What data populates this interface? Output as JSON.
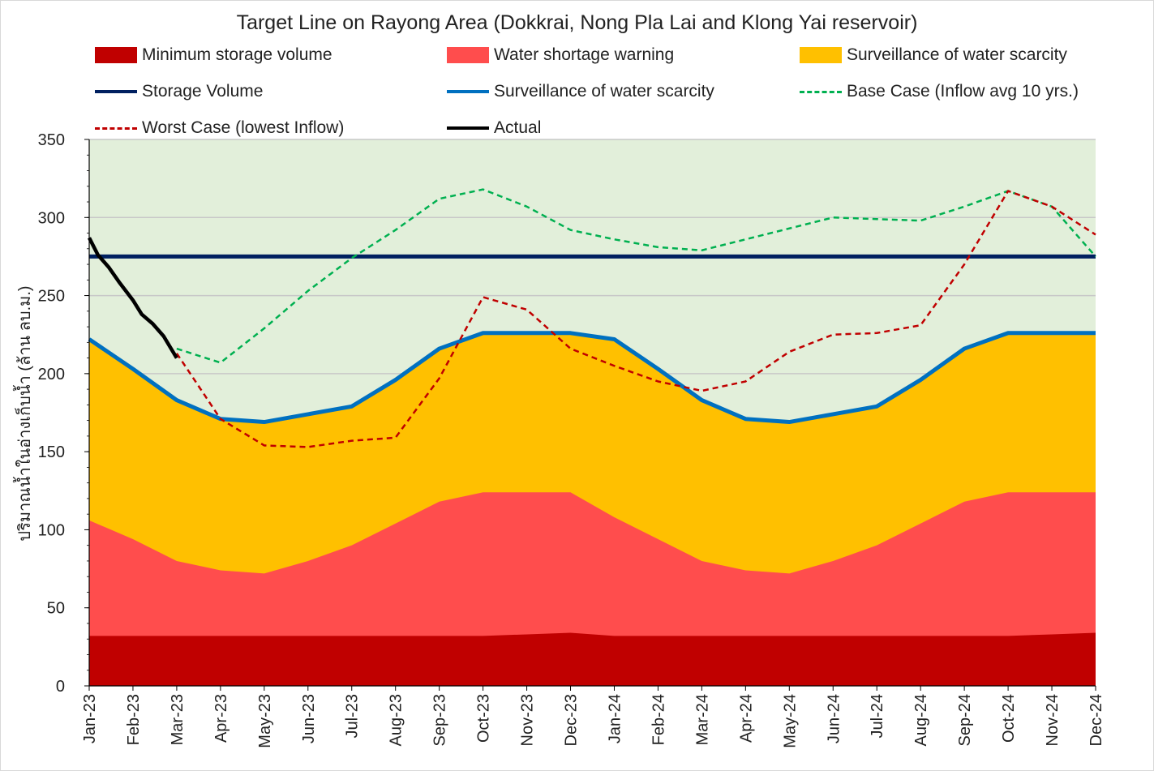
{
  "chart_data": {
    "type": "area",
    "title": "Target Line on Rayong Area (Dokkrai, Nong Pla Lai and Klong Yai reservoir)",
    "ylabel": "ปริมาณน้ำในอ่างเก็บน้ำ (ล้าน ลบ.ม.)",
    "xlabel": "",
    "ylim": [
      0,
      350
    ],
    "yticks": [
      0,
      50,
      100,
      150,
      200,
      250,
      300,
      350
    ],
    "grid": true,
    "legend_position": "top",
    "categories": [
      "Jan-23",
      "Feb-23",
      "Mar-23",
      "Apr-23",
      "May-23",
      "Jun-23",
      "Jul-23",
      "Aug-23",
      "Sep-23",
      "Oct-23",
      "Nov-23",
      "Dec-23",
      "Jan-24",
      "Feb-24",
      "Mar-24",
      "Apr-24",
      "May-24",
      "Jun-24",
      "Jul-24",
      "Aug-24",
      "Sep-24",
      "Oct-24",
      "Nov-24",
      "Dec-24"
    ],
    "background_color": "#e2efda",
    "series": [
      {
        "name": "Minimum storage volume",
        "kind": "area",
        "color": "#c00000",
        "values": [
          32,
          32,
          32,
          32,
          32,
          32,
          32,
          32,
          32,
          32,
          33,
          34,
          32,
          32,
          32,
          32,
          32,
          32,
          32,
          32,
          32,
          32,
          33,
          34
        ]
      },
      {
        "name": "Water shortage warning",
        "kind": "area",
        "color": "#ff4d4d",
        "values": [
          106,
          94,
          80,
          74,
          72,
          80,
          90,
          104,
          118,
          124,
          124,
          124,
          108,
          94,
          80,
          74,
          72,
          80,
          90,
          104,
          118,
          124,
          124,
          124
        ]
      },
      {
        "name": "Surveillance of water scarcity",
        "kind": "area",
        "color": "#ffc000",
        "values": [
          222,
          203,
          183,
          171,
          169,
          174,
          179,
          196,
          216,
          226,
          226,
          226,
          222,
          203,
          183,
          171,
          169,
          174,
          179,
          196,
          216,
          226,
          226,
          226
        ]
      },
      {
        "name": "Storage Volume",
        "kind": "line",
        "color": "#002060",
        "values": [
          275,
          275,
          275,
          275,
          275,
          275,
          275,
          275,
          275,
          275,
          275,
          275,
          275,
          275,
          275,
          275,
          275,
          275,
          275,
          275,
          275,
          275,
          275,
          275
        ]
      },
      {
        "name": "Surveillance of water scarcity",
        "kind": "line",
        "color": "#0070c0",
        "values": [
          222,
          203,
          183,
          171,
          169,
          174,
          179,
          196,
          216,
          226,
          226,
          226,
          222,
          203,
          183,
          171,
          169,
          174,
          179,
          196,
          216,
          226,
          226,
          226
        ]
      },
      {
        "name": "Base Case (Inflow avg 10 yrs.)",
        "kind": "dashed",
        "color": "#00b050",
        "x": [
          2,
          3,
          4,
          5,
          6,
          7,
          8,
          9,
          10,
          11,
          12,
          13,
          14,
          15,
          16,
          17,
          18,
          19,
          20,
          21,
          22,
          23
        ],
        "values": [
          216,
          207,
          229,
          253,
          274,
          292,
          312,
          318,
          307,
          292,
          286,
          281,
          279,
          286,
          293,
          300,
          299,
          298,
          307,
          317,
          307,
          275
        ]
      },
      {
        "name": "Worst Case (lowest Inflow)",
        "kind": "dashed",
        "color": "#c00000",
        "x": [
          2,
          3,
          4,
          5,
          6,
          7,
          8,
          9,
          10,
          11,
          12,
          13,
          14,
          15,
          16,
          17,
          18,
          19,
          20,
          21,
          22,
          23
        ],
        "values": [
          213,
          171,
          154,
          153,
          157,
          159,
          197,
          249,
          241,
          216,
          205,
          195,
          189,
          195,
          214,
          225,
          226,
          231,
          270,
          317,
          307,
          289
        ]
      },
      {
        "name": "Actual",
        "kind": "line",
        "color": "#000000",
        "x": [
          0,
          0.2,
          0.45,
          0.7,
          1.0,
          1.2,
          1.45,
          1.7,
          2.0
        ],
        "values": [
          287,
          276,
          268,
          258,
          247,
          238,
          232,
          224,
          210
        ]
      }
    ]
  },
  "legend": [
    {
      "label": "Minimum storage volume",
      "swatch": "area",
      "color": "#c00000"
    },
    {
      "label": "Water shortage warning",
      "swatch": "area",
      "color": "#ff4d4d"
    },
    {
      "label": "Surveillance of water scarcity",
      "swatch": "area",
      "color": "#ffc000"
    },
    {
      "label": "Storage Volume",
      "swatch": "line",
      "color": "#002060"
    },
    {
      "label": "Surveillance of water scarcity",
      "swatch": "line",
      "color": "#0070c0"
    },
    {
      "label": "Base Case (Inflow avg 10 yrs.)",
      "swatch": "dash",
      "color": "#00b050"
    },
    {
      "label": "Worst Case (lowest Inflow)",
      "swatch": "dash",
      "color": "#c00000"
    },
    {
      "label": "Actual",
      "swatch": "line",
      "color": "#000000"
    }
  ]
}
